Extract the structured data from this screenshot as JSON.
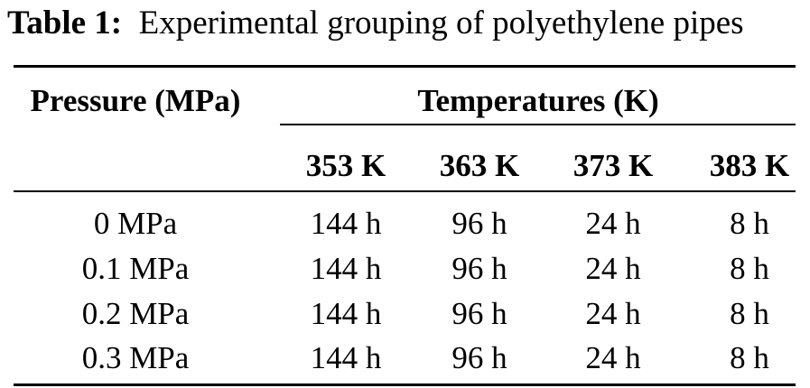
{
  "caption": {
    "label": "Table 1:",
    "text": "Experimental grouping of polyethylene pipes"
  },
  "table": {
    "row_header_title": "Pressure (MPa)",
    "group_header_title": "Temperatures (K)",
    "columns": [
      "353 K",
      "363 K",
      "373 K",
      "383 K"
    ],
    "rows": [
      {
        "pressure": "0 MPa",
        "values": [
          "144 h",
          "96 h",
          "24 h",
          "8 h"
        ]
      },
      {
        "pressure": "0.1 MPa",
        "values": [
          "144 h",
          "96 h",
          "24 h",
          "8 h"
        ]
      },
      {
        "pressure": "0.2 MPa",
        "values": [
          "144 h",
          "96 h",
          "24 h",
          "8 h"
        ]
      },
      {
        "pressure": "0.3 MPa",
        "values": [
          "144 h",
          "96 h",
          "24 h",
          "8 h"
        ]
      }
    ]
  }
}
